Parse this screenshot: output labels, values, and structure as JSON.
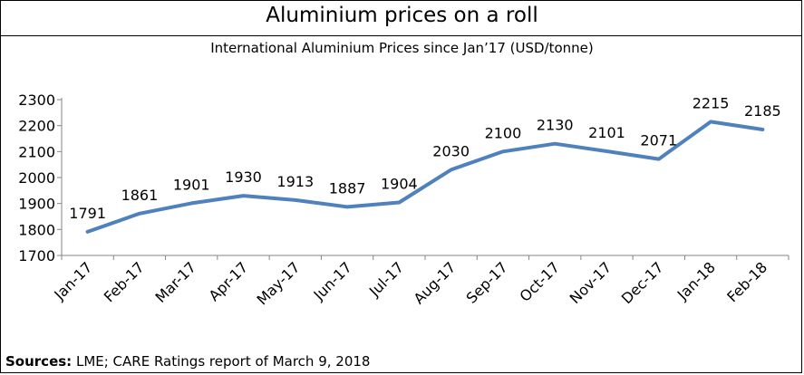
{
  "chart_data": {
    "type": "line",
    "title": "Aluminium prices on a roll",
    "subtitle": "International Aluminium Prices since Jan’17 (USD/tonne)",
    "categories": [
      "Jan-17",
      "Feb-17",
      "Mar-17",
      "Apr-17",
      "May-17",
      "Jun-17",
      "Jul-17",
      "Aug-17",
      "Sep-17",
      "Oct-17",
      "Nov-17",
      "Dec-17",
      "Jan-18",
      "Feb-18"
    ],
    "series": [
      {
        "values": [
          1791,
          1861,
          1901,
          1930,
          1913,
          1887,
          1904,
          2030,
          2100,
          2130,
          2101,
          2071,
          2215,
          2185
        ]
      }
    ],
    "ylim": [
      1700,
      2300
    ],
    "yticks": [
      1700,
      1800,
      1900,
      2000,
      2100,
      2200,
      2300
    ],
    "grid": false,
    "line_color": "#4f81bd",
    "data_labels": true
  },
  "source": {
    "label": "Sources:",
    "text": " LME; CARE Ratings report of March 9, 2018"
  }
}
